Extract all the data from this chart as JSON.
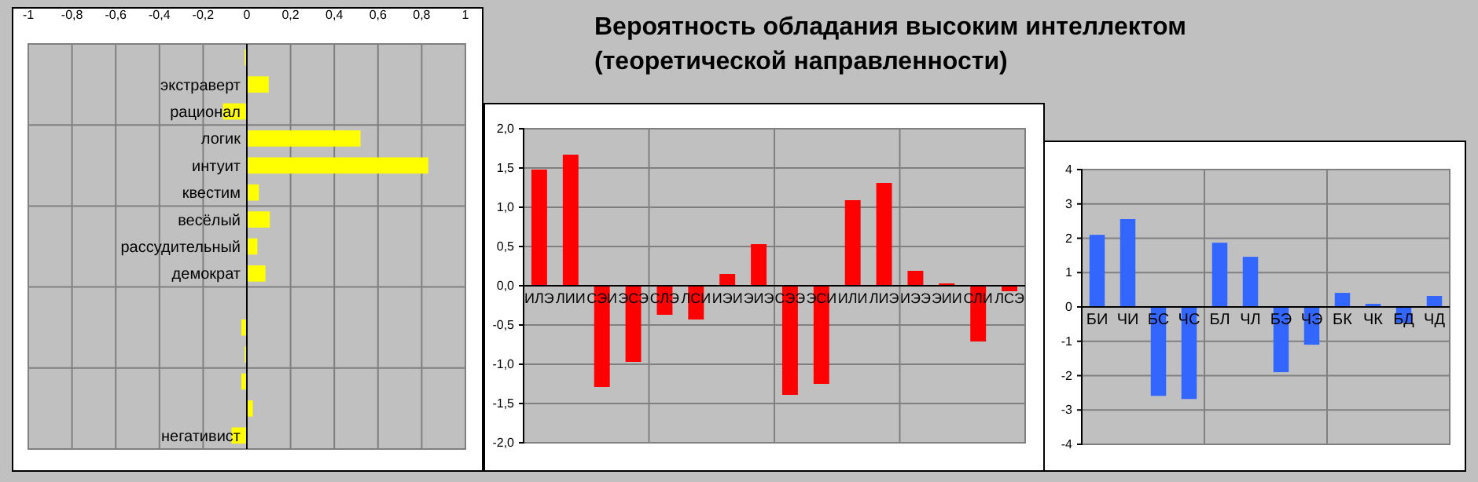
{
  "chart_data": [
    {
      "type": "bar",
      "orientation": "horizontal",
      "categories": [
        null,
        "экстраверт",
        "рационал",
        "логик",
        "интуит",
        "квестим",
        "весёлый",
        "рассудительный",
        "демократ",
        null,
        null,
        null,
        null,
        null,
        "негативист"
      ],
      "values": [
        -0.01,
        0.1,
        -0.11,
        0.52,
        0.83,
        0.055,
        0.105,
        0.048,
        0.085,
        0,
        -0.025,
        -0.01,
        -0.025,
        0.027,
        -0.07
      ],
      "color": "#ffff00",
      "xlim": [
        -1,
        1
      ],
      "xticks": [
        -1,
        {
          "value": -0.8,
          "label": "-0,8"
        },
        {
          "value": -0.6,
          "label": "-0,6"
        },
        {
          "value": -0.4,
          "label": "-0,4"
        },
        {
          "value": -0.2,
          "label": "-0,2"
        },
        0,
        {
          "value": 0.2,
          "label": "0,2"
        },
        {
          "value": 0.4,
          "label": "0,4"
        },
        {
          "value": 0.6,
          "label": "0,6"
        },
        {
          "value": 0.8,
          "label": "0,8"
        },
        1
      ],
      "grid": true
    },
    {
      "type": "bar",
      "title": "Вероятность обладания высоким интеллектом (теоретической направленности)",
      "categories": [
        "ИЛЭ",
        "ЛИИ",
        "СЭИ",
        "ЭСЭ",
        "СЛЭ",
        "ЛСИ",
        "ИЭИ",
        "ЭИЭ",
        "СЭЭ",
        "ЭСИ",
        "ИЛИ",
        "ЛИЭ",
        "ИЭЭ",
        "ЭИИ",
        "СЛИ",
        "ЛСЭ"
      ],
      "values": [
        1.48,
        1.67,
        -1.29,
        -0.97,
        -0.37,
        -0.43,
        0.15,
        0.53,
        -1.39,
        -1.25,
        1.09,
        1.31,
        0.19,
        0.03,
        -0.71,
        -0.07
      ],
      "color": "#ff0000",
      "ylim": [
        -2,
        2
      ],
      "yticks": [
        {
          "value": -2,
          "label": "-2,0"
        },
        {
          "value": -1.5,
          "label": "-1,5"
        },
        {
          "value": -1,
          "label": "-1,0"
        },
        {
          "value": -0.5,
          "label": "-0,5"
        },
        {
          "value": 0,
          "label": "0,0"
        },
        {
          "value": 0.5,
          "label": "0,5"
        },
        {
          "value": 1,
          "label": "1,0"
        },
        {
          "value": 1.5,
          "label": "1,5"
        },
        {
          "value": 2,
          "label": "2,0"
        }
      ],
      "grid": true
    },
    {
      "type": "bar",
      "categories": [
        "БИ",
        "ЧИ",
        "БС",
        "ЧС",
        "БЛ",
        "ЧЛ",
        "БЭ",
        "ЧЭ",
        "БК",
        "ЧК",
        "БД",
        "ЧД"
      ],
      "values": [
        2.1,
        2.56,
        -2.59,
        -2.68,
        1.87,
        1.46,
        -1.9,
        -1.1,
        0.41,
        0.09,
        -0.46,
        0.32
      ],
      "color": "#3366ff",
      "ylim": [
        -4,
        4
      ],
      "yticks": [
        -4,
        -3,
        -2,
        -1,
        0,
        1,
        2,
        3,
        4
      ],
      "grid": true
    }
  ]
}
